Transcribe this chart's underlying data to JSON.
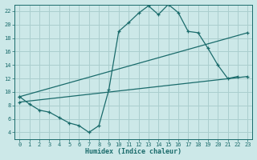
{
  "title": "",
  "xlabel": "Humidex (Indice chaleur)",
  "ylabel": "",
  "background_color": "#cce8e8",
  "grid_color": "#aacece",
  "line_color": "#1a6b6b",
  "xlim": [
    -0.5,
    23.5
  ],
  "ylim": [
    3,
    23
  ],
  "xticks": [
    0,
    1,
    2,
    3,
    4,
    5,
    6,
    7,
    8,
    9,
    10,
    11,
    12,
    13,
    14,
    15,
    16,
    17,
    18,
    19,
    20,
    21,
    22,
    23
  ],
  "yticks": [
    4,
    6,
    8,
    10,
    12,
    14,
    16,
    18,
    20,
    22
  ],
  "curve1_x": [
    0,
    1,
    2,
    3,
    4,
    5,
    6,
    7,
    8,
    9,
    10,
    11,
    12,
    13,
    14,
    15,
    16,
    17,
    18,
    19,
    20,
    21,
    22
  ],
  "curve1_y": [
    9.3,
    8.2,
    7.3,
    7.0,
    6.2,
    5.4,
    5.0,
    4.0,
    5.0,
    10.3,
    19.0,
    20.3,
    21.7,
    22.8,
    21.5,
    23.0,
    21.8,
    19.0,
    18.8,
    16.5,
    14.0,
    12.0,
    12.3
  ],
  "curve2_x": [
    0,
    23
  ],
  "curve2_y": [
    9.3,
    18.8
  ],
  "curve3_x": [
    0,
    23
  ],
  "curve3_y": [
    8.5,
    12.3
  ],
  "figw": 3.2,
  "figh": 2.0,
  "dpi": 100
}
